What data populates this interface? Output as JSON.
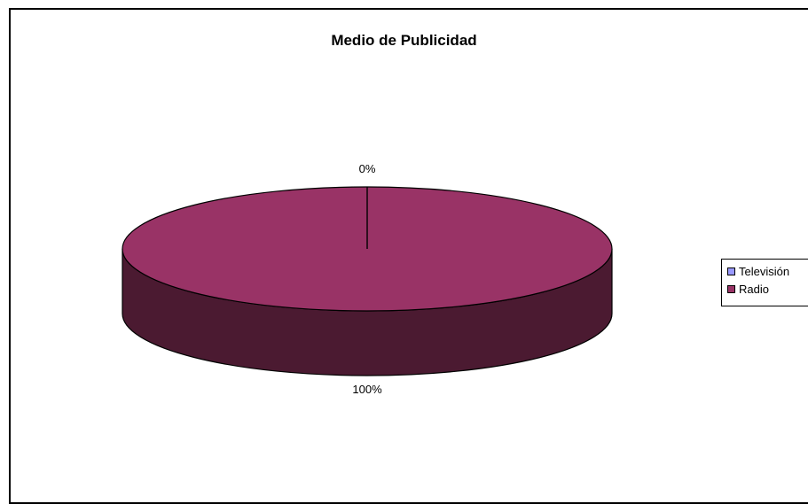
{
  "chart_data": {
    "type": "pie",
    "title": "Medio de Publicidad",
    "categories": [
      "Televisión",
      "Radio"
    ],
    "values": [
      0,
      100
    ],
    "data_labels": [
      "0%",
      "100%"
    ],
    "colors": [
      "#9999ff",
      "#993366"
    ],
    "side_color": "#4b1a31",
    "legend_position": "right",
    "style": "3d"
  }
}
